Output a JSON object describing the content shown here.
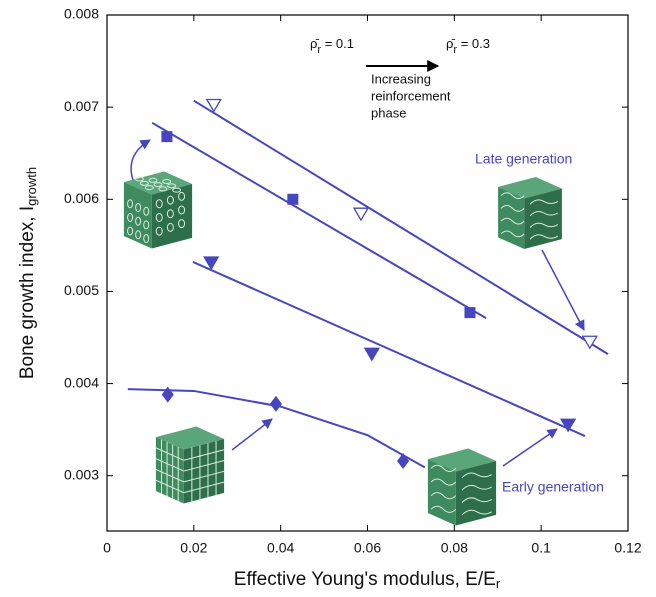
{
  "chart_data": {
    "type": "scatter",
    "x_label": {
      "text": "Effective Young's modulus, E/E",
      "sub": "r"
    },
    "y_label": {
      "text": "Bone growth index, I",
      "sub": "growth"
    },
    "xlim": [
      0,
      0.12
    ],
    "ylim": [
      0.0024,
      0.008
    ],
    "xticks": [
      0,
      0.02,
      0.04,
      0.06,
      0.08,
      0.1,
      0.12
    ],
    "yticks": [
      0.003,
      0.004,
      0.005,
      0.006,
      0.007,
      0.008
    ],
    "color": "#4646c0",
    "series": [
      {
        "marker": "triangle-down-open",
        "x": [
          0.0246,
          0.0585,
          0.1112
        ],
        "values": [
          0.00703,
          0.00585,
          0.00446
        ],
        "fit": {
          "x": [
            0.02,
            0.1154
          ],
          "values": [
            0.00707,
            0.00432
          ]
        }
      },
      {
        "marker": "square",
        "x": [
          0.0138,
          0.0428,
          0.0836
        ],
        "values": [
          0.00668,
          0.006,
          0.00477
        ],
        "fit": {
          "x": [
            0.0104,
            0.0873
          ],
          "values": [
            0.00683,
            0.00471
          ]
        }
      },
      {
        "marker": "triangle-down",
        "x": [
          0.024,
          0.061,
          0.1062
        ],
        "values": [
          0.00532,
          0.00433,
          0.00356
        ],
        "fit": {
          "x": [
            0.0198,
            0.1101
          ],
          "values": [
            0.00532,
            0.00343
          ]
        }
      },
      {
        "marker": "diamond",
        "x": [
          0.014,
          0.0389,
          0.0682
        ],
        "values": [
          0.00388,
          0.00378,
          0.00316
        ],
        "fit": {
          "x": [
            0.0048,
            0.02,
            0.04,
            0.06,
            0.0732
          ],
          "values": [
            0.00394,
            0.00392,
            0.00375,
            0.00344,
            0.00309
          ]
        }
      }
    ],
    "annotations": {
      "rho_low": {
        "symbol": "ρ̄",
        "sub": "r",
        "text": " = 0.1"
      },
      "rho_high": {
        "symbol": "ρ̄",
        "sub": "r",
        "text": " = 0.3"
      },
      "increasing": [
        "Increasing",
        "reinforcement",
        "phase"
      ],
      "late": "Late generation",
      "early": "Early generation"
    }
  }
}
